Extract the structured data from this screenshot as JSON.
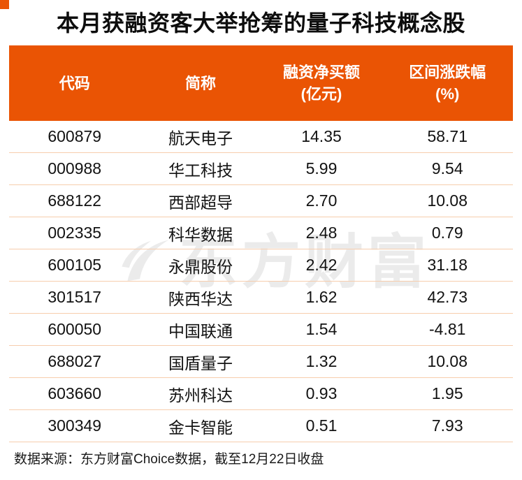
{
  "page": {
    "accent_color": "#EA5404",
    "divider_color": "#F7CDAD"
  },
  "chart_data": {
    "type": "table",
    "title": "本月获融资客大举抢筹的量子科技概念股",
    "columns": [
      "代码",
      "简称",
      "融资净买额(亿元)",
      "区间涨跌幅(%)"
    ],
    "rows": [
      [
        "600879",
        "航天电子",
        "14.35",
        "58.71"
      ],
      [
        "000988",
        "华工科技",
        "5.99",
        "9.54"
      ],
      [
        "688122",
        "西部超导",
        "2.70",
        "10.08"
      ],
      [
        "002335",
        "科华数据",
        "2.48",
        "0.79"
      ],
      [
        "600105",
        "永鼎股份",
        "2.42",
        "31.18"
      ],
      [
        "301517",
        "陕西华达",
        "1.62",
        "42.73"
      ],
      [
        "600050",
        "中国联通",
        "1.54",
        "-4.81"
      ],
      [
        "688027",
        "国盾量子",
        "1.32",
        "10.08"
      ],
      [
        "603660",
        "苏州科达",
        "0.93",
        "1.95"
      ],
      [
        "300349",
        "金卡智能",
        "0.51",
        "7.93"
      ]
    ]
  },
  "table": {
    "headers": [
      {
        "line1": "代码",
        "line2": ""
      },
      {
        "line1": "简称",
        "line2": ""
      },
      {
        "line1": "融资净买额",
        "line2": "(亿元)"
      },
      {
        "line1": "区间涨跌幅",
        "line2": "(%)"
      }
    ]
  },
  "watermark": {
    "text": "东方财富",
    "icon": "eastmoney-swoosh-icon"
  },
  "footer": {
    "text": "数据来源：东方财富Choice数据，截至12月22日收盘"
  }
}
